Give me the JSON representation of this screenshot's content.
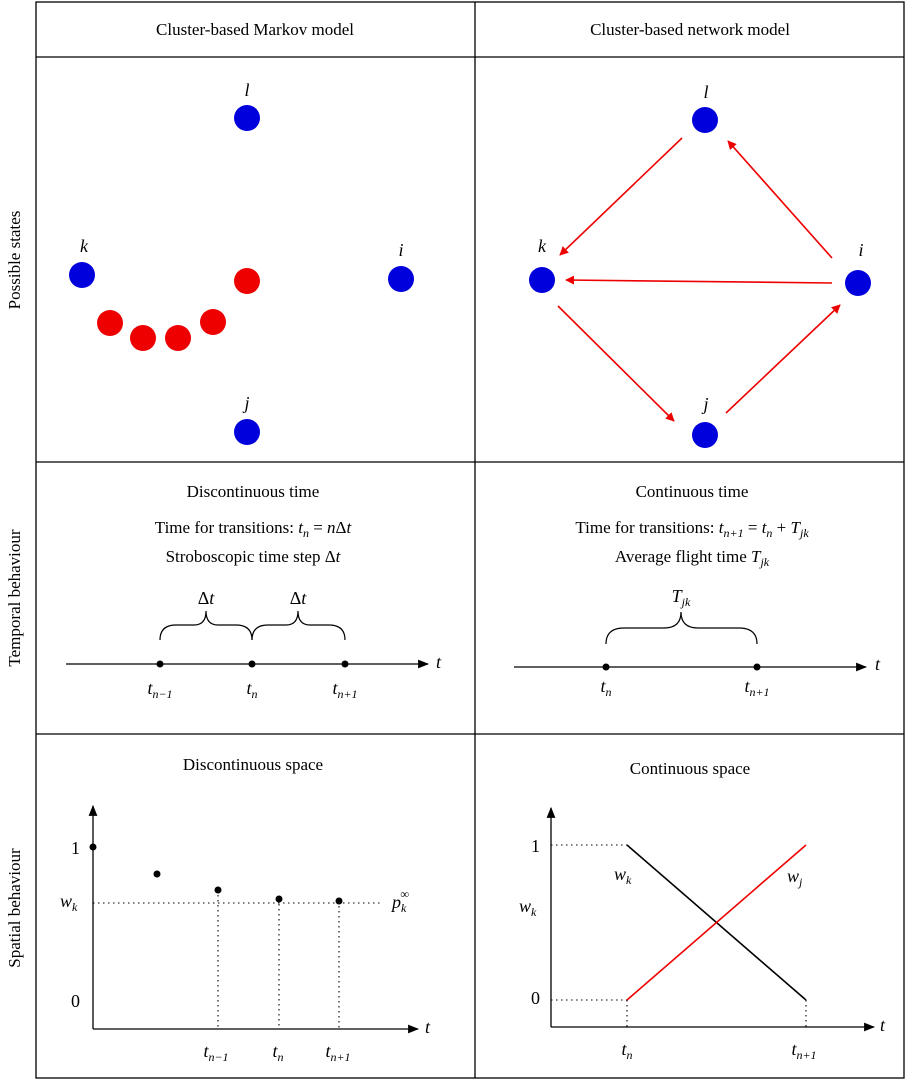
{
  "headers": {
    "left": "Cluster-based Markov model",
    "right": "Cluster-based network model"
  },
  "row_labels": {
    "states": "Possible states",
    "temporal": "Temporal behaviour",
    "spatial": "Spatial behaviour"
  },
  "states": {
    "node_l": "l",
    "node_k": "k",
    "node_i": "i",
    "node_j": "j"
  },
  "temporal": {
    "left_title": "Discontinuous time",
    "left_line1_prefix": "Time for transitions: ",
    "left_line2_prefix": "Stroboscopic time step ",
    "right_title": "Continuous time",
    "right_line1_prefix": "Time for transitions: ",
    "right_line2_prefix": "Average flight time "
  },
  "spatial": {
    "left_title": "Discontinuous space",
    "right_title": "Continuous space",
    "tick_one": "1",
    "tick_zero": "0"
  },
  "colors": {
    "blue": "#0000dd",
    "red": "#ee0000",
    "line": "#000000"
  }
}
